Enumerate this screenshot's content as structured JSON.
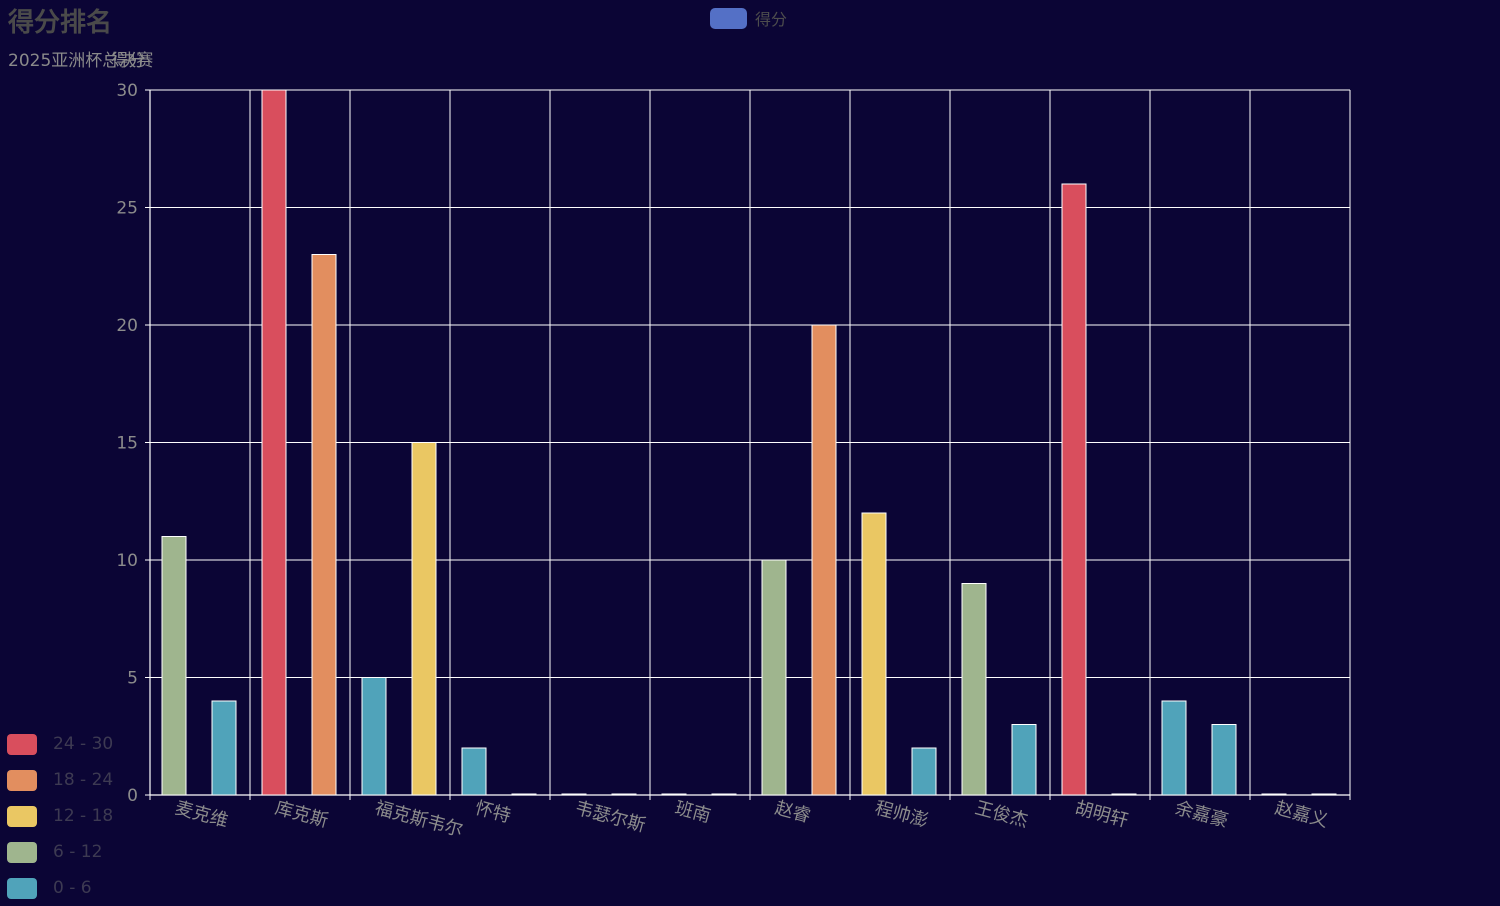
{
  "chart_data": {
    "type": "bar",
    "title": "得分排名",
    "subtitle": "2025亚洲杯总决赛",
    "subtitle_overlay": "得分",
    "categories": [
      "麦克维",
      "库克斯",
      "福克斯韦尔",
      "怀特",
      "韦瑟尔斯",
      "班南",
      "赵睿",
      "程帅澎",
      "王俊杰",
      "胡明轩",
      "余嘉豪",
      "赵嘉义"
    ],
    "series": [
      {
        "name": "得分",
        "values": [
          11,
          30,
          5,
          2,
          0,
          0,
          10,
          12,
          9,
          26,
          4,
          0
        ]
      },
      {
        "name": "得分",
        "values": [
          4,
          23,
          15,
          0,
          0,
          0,
          20,
          2,
          3,
          0,
          3,
          0
        ]
      }
    ],
    "ylim": [
      0,
      30
    ],
    "yticks": [
      "0",
      "5",
      "10",
      "15",
      "20",
      "25",
      "30"
    ],
    "grid": true,
    "legend": {
      "label": "得分",
      "color": "#5470c6",
      "placement": "top-center"
    },
    "visual_map": [
      {
        "label": "24 - 30",
        "min": 24,
        "max": 30,
        "color": "#d94e5d"
      },
      {
        "label": "18 - 24",
        "min": 18,
        "max": 24,
        "color": "#e28e5f"
      },
      {
        "label": "12 - 18",
        "min": 12,
        "max": 18,
        "color": "#eac763"
      },
      {
        "label": "6 - 12",
        "min": 6,
        "max": 12,
        "color": "#9fb58e"
      },
      {
        "label": "0 - 6",
        "min": 0,
        "max": 6,
        "color": "#50a3ba"
      }
    ]
  }
}
